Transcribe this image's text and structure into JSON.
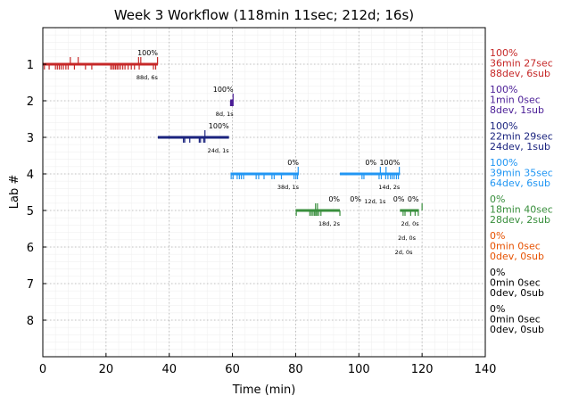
{
  "chart_data": {
    "type": "gantt-timeline",
    "title": "Week 3 Workflow (118min 11sec; 212d; 16s)",
    "xlabel": "Time (min)",
    "ylabel": "Lab #",
    "xlim": [
      0,
      140
    ],
    "ylim": [
      9,
      0
    ],
    "xticks": [
      "0",
      "20",
      "40",
      "60",
      "80",
      "100",
      "120",
      "140"
    ],
    "yticks": [
      "1",
      "2",
      "3",
      "4",
      "5",
      "6",
      "7",
      "8"
    ],
    "grid": true,
    "labs": [
      {
        "lab": 1,
        "color": "#c62828",
        "summary": [
          "100%",
          "36min 27sec",
          "88dev, 6sub"
        ],
        "segments": [
          {
            "start": 0,
            "end": 36.4
          }
        ],
        "dev_ticks": [
          0.5,
          2,
          4,
          4.6,
          5.2,
          5.8,
          6.5,
          7.3,
          8,
          10,
          13.5,
          15.5,
          21.5,
          22,
          22.5,
          23,
          23.5,
          24,
          24.6,
          25.3,
          26,
          27,
          28,
          29,
          30.5,
          35,
          35.7
        ],
        "sub_ticks": [
          8.7,
          11.2,
          30.3,
          31,
          36.3
        ],
        "annotations": [
          {
            "x": 36.4,
            "pct": "100%",
            "count": "88d, 6s"
          }
        ]
      },
      {
        "lab": 2,
        "color": "#4a1d96",
        "summary": [
          "100%",
          "1min 0sec",
          "8dev, 1sub"
        ],
        "segments": [
          {
            "start": 59.3,
            "end": 60.3
          }
        ],
        "dev_ticks": [
          59.4,
          59.7,
          60,
          60.2
        ],
        "sub_ticks": [
          60.2
        ],
        "annotations": [
          {
            "x": 60.3,
            "pct": "100%",
            "count": "8d, 1s"
          }
        ]
      },
      {
        "lab": 3,
        "color": "#1a237e",
        "summary": [
          "100%",
          "22min 29sec",
          "24dev, 1sub"
        ],
        "segments": [
          {
            "start": 36.4,
            "end": 58.9
          }
        ],
        "dev_ticks": [
          44.5,
          44.9,
          46.5,
          49.5,
          49.9,
          50.9,
          51.3
        ],
        "sub_ticks": [
          51.3
        ],
        "annotations": [
          {
            "x": 58.9,
            "pct": "100%",
            "count": "24d, 1s"
          }
        ]
      },
      {
        "lab": 4,
        "color": "#2196f3",
        "summary": [
          "100%",
          "39min 35sec",
          "64dev, 6sub"
        ],
        "segments": [
          {
            "start": 59.4,
            "end": 81
          },
          {
            "start": 94,
            "end": 113
          }
        ],
        "dev_ticks": [
          59.6,
          60.2,
          61.5,
          62.2,
          62.8,
          63.5,
          67.5,
          68.3,
          70,
          72.5,
          73.2,
          75.5,
          79.5,
          80.1,
          80.6,
          101,
          101.6,
          106.4,
          107.1,
          108.5,
          109.2,
          110,
          110.6,
          111.2,
          111.9,
          112.5
        ],
        "sub_ticks": [
          80.8,
          106.8,
          108.6,
          112.8
        ],
        "annotations": [
          {
            "x": 81,
            "pct": "0%",
            "count": "38d, 1s"
          },
          {
            "x": 108.5,
            "pct": "0%",
            "count": "12d, 1s"
          },
          {
            "x": 113,
            "pct": "100%",
            "count": "14d, 2s"
          }
        ]
      },
      {
        "lab": 5,
        "color": "#388e3c",
        "summary": [
          "0%",
          "18min 40sec",
          "28dev, 2sub"
        ],
        "segments": [
          {
            "start": 80,
            "end": 94
          },
          {
            "start": 113,
            "end": 119
          }
        ],
        "dev_ticks": [
          80.2,
          84.5,
          85,
          85.5,
          86,
          86.4,
          86.8,
          87.3,
          88,
          94,
          114,
          114.6,
          116.4,
          117.8,
          118.8
        ],
        "sub_ticks": [
          86.3,
          86.9,
          120
        ],
        "annotations": [
          {
            "x": 94,
            "pct": "0%",
            "count": "18d, 2s"
          },
          {
            "x": 117,
            "pct": "0%",
            "count": "2d, 0s"
          },
          {
            "x": 118,
            "pct": "0%",
            "count": "2d, 0s"
          },
          {
            "x": 119,
            "pct": "0%",
            "count": "2d, 0s"
          }
        ]
      },
      {
        "lab": 6,
        "color": "#e65100",
        "summary": [
          "0%",
          "0min 0sec",
          "0dev, 0sub"
        ],
        "segments": [],
        "dev_ticks": [],
        "sub_ticks": [],
        "annotations": []
      },
      {
        "lab": 7,
        "color": "#000000",
        "summary": [
          "0%",
          "0min 0sec",
          "0dev, 0sub"
        ],
        "segments": [],
        "dev_ticks": [],
        "sub_ticks": [],
        "annotations": []
      },
      {
        "lab": 8,
        "color": "#000000",
        "summary": [
          "0%",
          "0min 0sec",
          "0dev, 0sub"
        ],
        "segments": [],
        "dev_ticks": [],
        "sub_ticks": [],
        "annotations": []
      }
    ]
  }
}
